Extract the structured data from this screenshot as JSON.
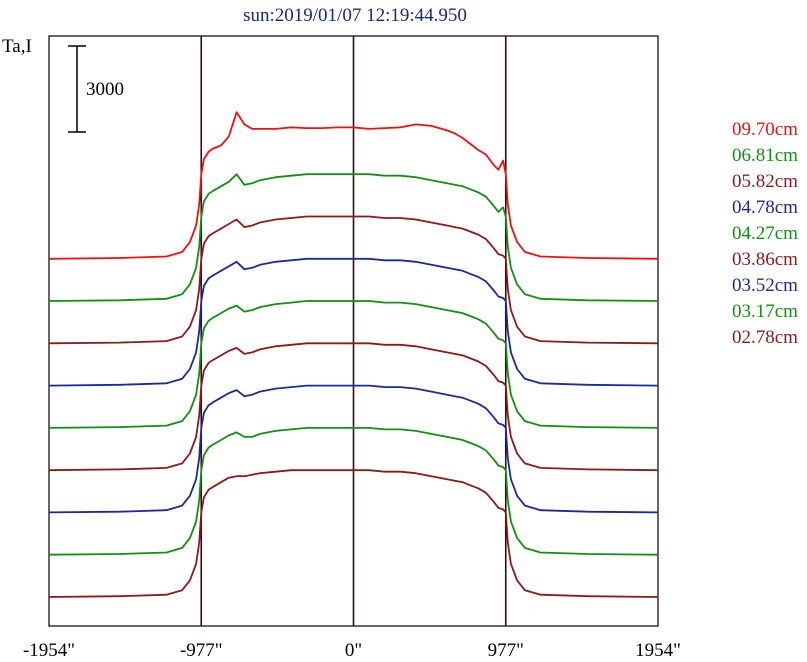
{
  "chart_data": {
    "type": "line",
    "title": "sun:2019/01/07 12:19:44.950",
    "ylabel": "Ta,I",
    "scale_bar_label": "3000",
    "x_tick_labels": [
      "-1954\"",
      "-977\"",
      "0\"",
      "977\"",
      "1954\""
    ],
    "x_ticks": [
      -1954,
      -977,
      0,
      977,
      1954
    ],
    "xlim": [
      -1954,
      1954
    ],
    "vertical_lines": [
      -977,
      0,
      977
    ],
    "profile_x": [
      -1954,
      -1500,
      -1200,
      -1100,
      -1050,
      -1010,
      -990,
      -977,
      -960,
      -930,
      -900,
      -850,
      -800,
      -750,
      -700,
      -650,
      -600,
      -500,
      -400,
      -300,
      -200,
      -100,
      0,
      100,
      200,
      300,
      400,
      500,
      600,
      650,
      700,
      750,
      800,
      850,
      900,
      930,
      960,
      977,
      990,
      1010,
      1050,
      1100,
      1200,
      1500,
      1954
    ],
    "offset_unit": 2800,
    "series": [
      {
        "name": "09.70cm",
        "color": "#ee1111",
        "offset": 8,
        "values": [
          0,
          50,
          150,
          450,
          1100,
          2200,
          3600,
          5600,
          6600,
          7100,
          7300,
          7500,
          8100,
          9700,
          8900,
          8600,
          8600,
          8600,
          8700,
          8650,
          8650,
          8700,
          8700,
          8600,
          8650,
          8700,
          8900,
          8800,
          8500,
          8300,
          8000,
          7600,
          7200,
          6900,
          6200,
          5900,
          6500,
          5600,
          3600,
          2200,
          1100,
          450,
          150,
          50,
          0
        ]
      },
      {
        "name": "06.81cm",
        "color": "#138f13",
        "offset": 7,
        "values": [
          0,
          50,
          150,
          450,
          1100,
          2200,
          3600,
          5600,
          6600,
          7100,
          7300,
          7600,
          7900,
          8400,
          7700,
          7800,
          8000,
          8200,
          8300,
          8400,
          8400,
          8400,
          8400,
          8400,
          8300,
          8300,
          8200,
          8000,
          7800,
          7700,
          7600,
          7400,
          7200,
          6900,
          6300,
          5900,
          6200,
          5600,
          3600,
          2200,
          1100,
          450,
          150,
          50,
          0
        ]
      },
      {
        "name": "05.82cm",
        "color": "#8b1a1a",
        "offset": 6,
        "values": [
          0,
          50,
          150,
          450,
          1100,
          2200,
          3600,
          5600,
          6600,
          7100,
          7300,
          7600,
          7900,
          8200,
          7700,
          7800,
          8000,
          8200,
          8300,
          8400,
          8400,
          8400,
          8400,
          8400,
          8300,
          8300,
          8200,
          8000,
          7800,
          7700,
          7600,
          7400,
          7200,
          6900,
          6300,
          5900,
          5800,
          5600,
          3600,
          2200,
          1100,
          450,
          150,
          50,
          0
        ]
      },
      {
        "name": "04.78cm",
        "color": "#1a2a9a",
        "offset": 5,
        "values": [
          0,
          50,
          150,
          450,
          1100,
          2200,
          3600,
          5600,
          6600,
          7100,
          7300,
          7600,
          7900,
          8200,
          7700,
          7800,
          8000,
          8200,
          8300,
          8400,
          8400,
          8400,
          8400,
          8400,
          8300,
          8300,
          8200,
          8000,
          7800,
          7700,
          7600,
          7400,
          7200,
          6900,
          6300,
          5900,
          5800,
          5600,
          3600,
          2200,
          1100,
          450,
          150,
          50,
          0
        ]
      },
      {
        "name": "04.27cm",
        "color": "#138f13",
        "offset": 4,
        "values": [
          0,
          50,
          150,
          450,
          1100,
          2200,
          3600,
          5600,
          6600,
          7100,
          7300,
          7600,
          7900,
          8100,
          7700,
          7800,
          8000,
          8200,
          8300,
          8400,
          8400,
          8400,
          8400,
          8400,
          8300,
          8300,
          8200,
          8000,
          7800,
          7700,
          7600,
          7400,
          7200,
          6900,
          6300,
          5900,
          5800,
          5600,
          3600,
          2200,
          1100,
          450,
          150,
          50,
          0
        ]
      },
      {
        "name": "03.86cm",
        "color": "#8b1a1a",
        "offset": 3,
        "values": [
          0,
          50,
          150,
          450,
          1100,
          2200,
          3600,
          5600,
          6600,
          7100,
          7300,
          7600,
          7900,
          8100,
          7700,
          7800,
          8000,
          8200,
          8300,
          8400,
          8400,
          8400,
          8400,
          8400,
          8300,
          8300,
          8200,
          8000,
          7800,
          7700,
          7600,
          7400,
          7200,
          6900,
          6300,
          5900,
          5800,
          5600,
          3600,
          2200,
          1100,
          450,
          150,
          50,
          0
        ]
      },
      {
        "name": "03.52cm",
        "color": "#1a2a9a",
        "offset": 2,
        "values": [
          0,
          50,
          150,
          450,
          1100,
          2200,
          3600,
          5600,
          6600,
          7100,
          7300,
          7600,
          7900,
          8100,
          7700,
          7800,
          8000,
          8200,
          8300,
          8400,
          8400,
          8400,
          8400,
          8400,
          8300,
          8300,
          8200,
          8000,
          7800,
          7700,
          7600,
          7400,
          7200,
          6900,
          6300,
          5900,
          5800,
          5600,
          3600,
          2200,
          1100,
          450,
          150,
          50,
          0
        ]
      },
      {
        "name": "03.17cm",
        "color": "#138f13",
        "offset": 1,
        "values": [
          0,
          50,
          150,
          450,
          1100,
          2200,
          3600,
          5600,
          6600,
          7100,
          7300,
          7600,
          7900,
          8100,
          7800,
          7800,
          8000,
          8200,
          8300,
          8400,
          8400,
          8400,
          8400,
          8400,
          8300,
          8300,
          8200,
          8000,
          7800,
          7700,
          7600,
          7400,
          7200,
          6900,
          6300,
          5900,
          5800,
          5600,
          3600,
          2200,
          1100,
          450,
          150,
          50,
          0
        ]
      },
      {
        "name": "02.78cm",
        "color": "#8b1a1a",
        "offset": 0,
        "values": [
          0,
          50,
          150,
          450,
          1100,
          2200,
          3600,
          5600,
          6600,
          7100,
          7300,
          7600,
          7900,
          8000,
          8000,
          8100,
          8200,
          8300,
          8400,
          8400,
          8400,
          8400,
          8400,
          8400,
          8300,
          8300,
          8200,
          8000,
          7800,
          7700,
          7600,
          7400,
          7200,
          6900,
          6300,
          5900,
          5800,
          5600,
          3600,
          2200,
          1100,
          450,
          150,
          50,
          0
        ]
      }
    ]
  }
}
